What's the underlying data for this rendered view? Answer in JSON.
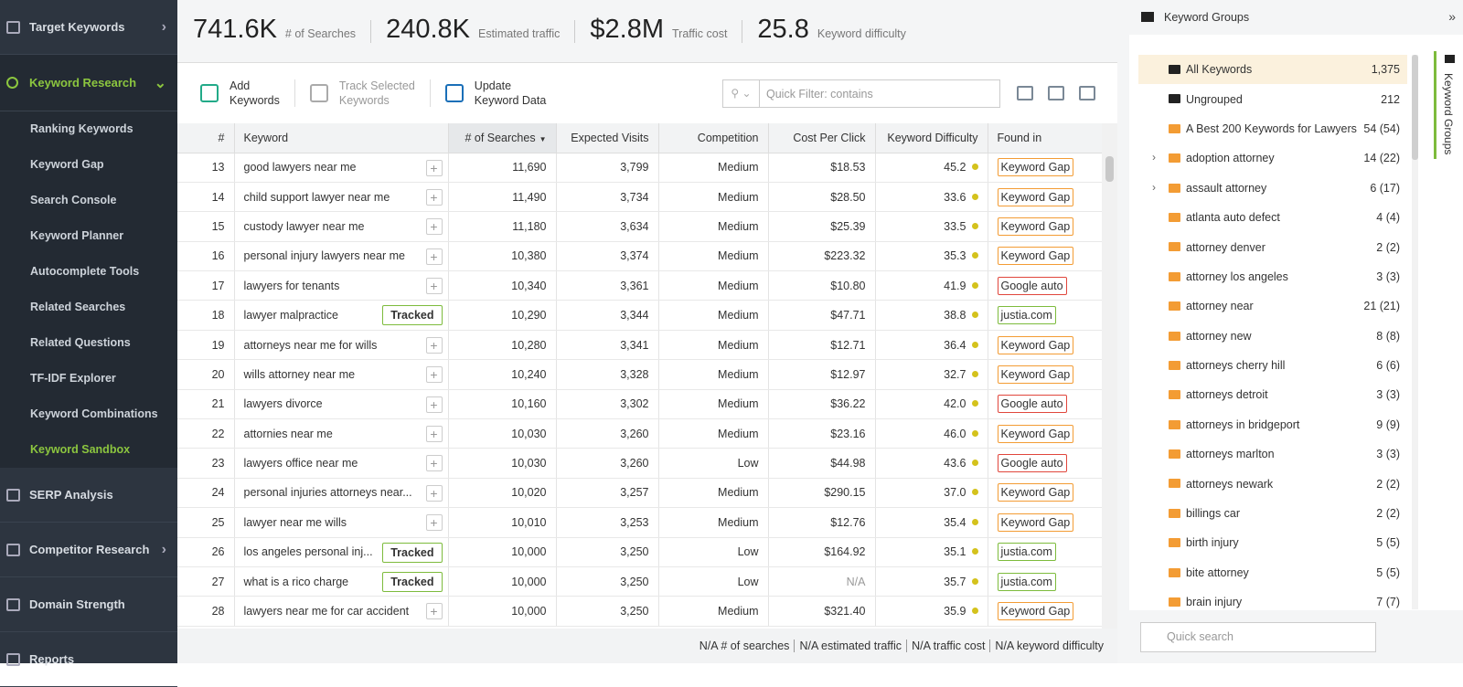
{
  "sidebar": {
    "sections": [
      {
        "label": "Target Keywords",
        "arrow": "›"
      },
      {
        "label": "Keyword Research",
        "arrow": "⌄",
        "active": true,
        "items": [
          "Ranking Keywords",
          "Keyword Gap",
          "Search Console",
          "Keyword Planner",
          "Autocomplete Tools",
          "Related Searches",
          "Related Questions",
          "TF-IDF Explorer",
          "Keyword Combinations",
          "Keyword Sandbox"
        ],
        "selected_item": 9
      },
      {
        "label": "SERP Analysis"
      },
      {
        "label": "Competitor Research",
        "arrow": "›"
      },
      {
        "label": "Domain Strength"
      },
      {
        "label": "Reports"
      }
    ]
  },
  "stats": [
    {
      "value": "741.6K",
      "label": "# of Searches"
    },
    {
      "value": "240.8K",
      "label": "Estimated traffic"
    },
    {
      "value": "$2.8M",
      "label": "Traffic cost"
    },
    {
      "value": "25.8",
      "label": "Keyword difficulty"
    }
  ],
  "toolbar": {
    "buttons": [
      {
        "lines": [
          "Add",
          "Keywords"
        ],
        "enabled": true
      },
      {
        "lines": [
          "Track Selected",
          "Keywords"
        ],
        "enabled": false
      },
      {
        "lines": [
          "Update",
          "Keyword Data"
        ],
        "enabled": true
      }
    ],
    "filter_placeholder": "Quick Filter: contains"
  },
  "table": {
    "columns": [
      "#",
      "Keyword",
      "# of Searches",
      "Expected Visits",
      "Competition",
      "Cost Per Click",
      "Keyword Difficulty",
      "Found in"
    ],
    "sorted_column": 2,
    "rows": [
      {
        "num": "13",
        "keyword": "good lawyers near me",
        "searches": "11,690",
        "visits": "3,799",
        "competition": "Medium",
        "cpc": "$18.53",
        "difficulty": "45.2",
        "found": "Keyword Gap",
        "found_color": "#f39c34"
      },
      {
        "num": "14",
        "keyword": "child support lawyer near me",
        "searches": "11,490",
        "visits": "3,734",
        "competition": "Medium",
        "cpc": "$28.50",
        "difficulty": "33.6",
        "found": "Keyword Gap",
        "found_color": "#f39c34"
      },
      {
        "num": "15",
        "keyword": "custody lawyer near me",
        "searches": "11,180",
        "visits": "3,634",
        "competition": "Medium",
        "cpc": "$25.39",
        "difficulty": "33.5",
        "found": "Keyword Gap",
        "found_color": "#f39c34"
      },
      {
        "num": "16",
        "keyword": "personal injury lawyers near me",
        "searches": "10,380",
        "visits": "3,374",
        "competition": "Medium",
        "cpc": "$223.32",
        "difficulty": "35.3",
        "found": "Keyword Gap",
        "found_color": "#f39c34"
      },
      {
        "num": "17",
        "keyword": "lawyers for tenants",
        "searches": "10,340",
        "visits": "3,361",
        "competition": "Medium",
        "cpc": "$10.80",
        "difficulty": "41.9",
        "found": "Google auto",
        "found_color": "#e0463c"
      },
      {
        "num": "18",
        "keyword": "lawyer malpractice",
        "tracked": "Tracked",
        "searches": "10,290",
        "visits": "3,344",
        "competition": "Medium",
        "cpc": "$47.71",
        "difficulty": "38.8",
        "found": "justia.com",
        "found_color": "#7dbb3c"
      },
      {
        "num": "19",
        "keyword": "attorneys near me for wills",
        "searches": "10,280",
        "visits": "3,341",
        "competition": "Medium",
        "cpc": "$12.71",
        "difficulty": "36.4",
        "found": "Keyword Gap",
        "found_color": "#f39c34"
      },
      {
        "num": "20",
        "keyword": "wills attorney near me",
        "searches": "10,240",
        "visits": "3,328",
        "competition": "Medium",
        "cpc": "$12.97",
        "difficulty": "32.7",
        "found": "Keyword Gap",
        "found_color": "#f39c34"
      },
      {
        "num": "21",
        "keyword": "lawyers divorce",
        "searches": "10,160",
        "visits": "3,302",
        "competition": "Medium",
        "cpc": "$36.22",
        "difficulty": "42.0",
        "found": "Google auto",
        "found_color": "#e0463c"
      },
      {
        "num": "22",
        "keyword": "attornies near me",
        "searches": "10,030",
        "visits": "3,260",
        "competition": "Medium",
        "cpc": "$23.16",
        "difficulty": "46.0",
        "found": "Keyword Gap",
        "found_color": "#f39c34"
      },
      {
        "num": "23",
        "keyword": "lawyers office near me",
        "searches": "10,030",
        "visits": "3,260",
        "competition": "Low",
        "cpc": "$44.98",
        "difficulty": "43.6",
        "found": "Google auto",
        "found_color": "#e0463c"
      },
      {
        "num": "24",
        "keyword": "personal injuries attorneys near...",
        "searches": "10,020",
        "visits": "3,257",
        "competition": "Medium",
        "cpc": "$290.15",
        "difficulty": "37.0",
        "found": "Keyword Gap",
        "found_color": "#f39c34"
      },
      {
        "num": "25",
        "keyword": "lawyer near me wills",
        "searches": "10,010",
        "visits": "3,253",
        "competition": "Medium",
        "cpc": "$12.76",
        "difficulty": "35.4",
        "found": "Keyword Gap",
        "found_color": "#f39c34"
      },
      {
        "num": "26",
        "keyword": "los angeles personal inj...",
        "tracked": "Tracked",
        "searches": "10,000",
        "visits": "3,250",
        "competition": "Low",
        "cpc": "$164.92",
        "difficulty": "35.1",
        "found": "justia.com",
        "found_color": "#7dbb3c"
      },
      {
        "num": "27",
        "keyword": "what is a rico charge",
        "tracked": "Tracked",
        "searches": "10,000",
        "visits": "3,250",
        "competition": "Low",
        "cpc": "N/A",
        "difficulty": "35.7",
        "found": "justia.com",
        "found_color": "#7dbb3c"
      },
      {
        "num": "28",
        "keyword": "lawyers near me for car accident",
        "searches": "10,000",
        "visits": "3,250",
        "competition": "Medium",
        "cpc": "$321.40",
        "difficulty": "35.9",
        "found": "Keyword Gap",
        "found_color": "#f39c34"
      }
    ]
  },
  "footer": [
    "N/A # of searches",
    "N/A estimated traffic",
    "N/A traffic cost",
    "N/A keyword difficulty"
  ],
  "groups_panel": {
    "title": "Keyword Groups",
    "tab": "Keyword Groups",
    "groups": [
      {
        "name": "All Keywords",
        "count": "1,375",
        "color": "#222",
        "selected": true
      },
      {
        "name": "Ungrouped",
        "count": "212",
        "color": "#222"
      },
      {
        "name": "A Best 200 Keywords for Lawyers",
        "count": "54 (54)",
        "color": "#f39c34"
      },
      {
        "name": "adoption attorney",
        "count": "14 (22)",
        "color": "#f39c34",
        "expandable": true
      },
      {
        "name": "assault attorney",
        "count": "6 (17)",
        "color": "#f39c34",
        "expandable": true
      },
      {
        "name": "atlanta auto defect",
        "count": "4 (4)",
        "color": "#f39c34"
      },
      {
        "name": "attorney denver",
        "count": "2 (2)",
        "color": "#f39c34"
      },
      {
        "name": "attorney los angeles",
        "count": "3 (3)",
        "color": "#f39c34"
      },
      {
        "name": "attorney near",
        "count": "21 (21)",
        "color": "#f39c34"
      },
      {
        "name": "attorney new",
        "count": "8 (8)",
        "color": "#f39c34"
      },
      {
        "name": "attorneys cherry hill",
        "count": "6 (6)",
        "color": "#f39c34"
      },
      {
        "name": "attorneys detroit",
        "count": "3 (3)",
        "color": "#f39c34"
      },
      {
        "name": "attorneys in bridgeport",
        "count": "9 (9)",
        "color": "#f39c34"
      },
      {
        "name": "attorneys marlton",
        "count": "3 (3)",
        "color": "#f39c34"
      },
      {
        "name": "attorneys newark",
        "count": "2 (2)",
        "color": "#f39c34"
      },
      {
        "name": "billings car",
        "count": "2 (2)",
        "color": "#f39c34"
      },
      {
        "name": "birth injury",
        "count": "5 (5)",
        "color": "#f39c34"
      },
      {
        "name": "bite attorney",
        "count": "5 (5)",
        "color": "#f39c34"
      },
      {
        "name": "brain injury",
        "count": "7 (7)",
        "color": "#f39c34"
      }
    ],
    "search_placeholder": "Quick search"
  }
}
